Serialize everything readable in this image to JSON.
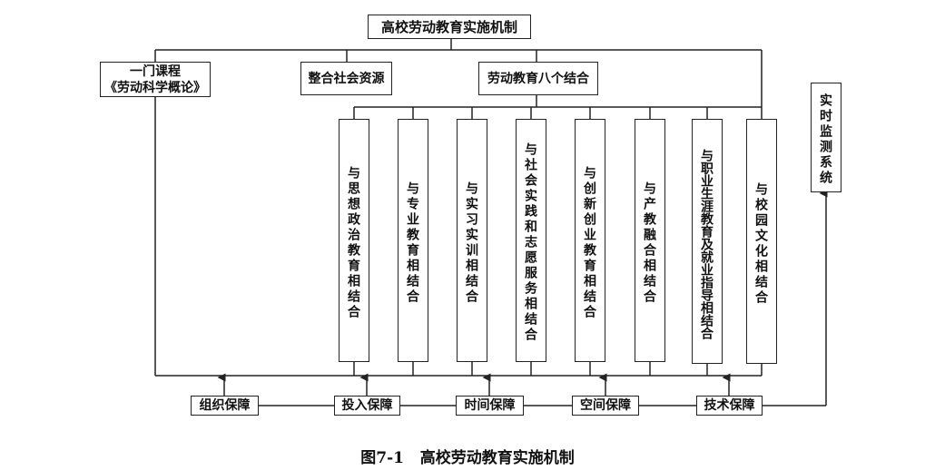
{
  "title": "高校劳动教育实施机制",
  "branches": {
    "course_line1": "一门课程",
    "course_line2": "《劳动科学概论》",
    "social": "整合社会资源",
    "eight": "劳动教育八个结合"
  },
  "combos": [
    "与思想政治教育相结合",
    "与专业教育相结合",
    "与实习实训相结合",
    "与社会实践和志愿服务相结合",
    "与创新创业教育相结合",
    "与产教融合相结合",
    "与职业生涯教育及就业指导相结合",
    "与校园文化相结合"
  ],
  "guarantees": [
    "组织保障",
    "投入保障",
    "时间保障",
    "空间保障",
    "技术保障"
  ],
  "monitor": "实时监测系统",
  "caption": "图7-1   高校劳动教育实施机制"
}
